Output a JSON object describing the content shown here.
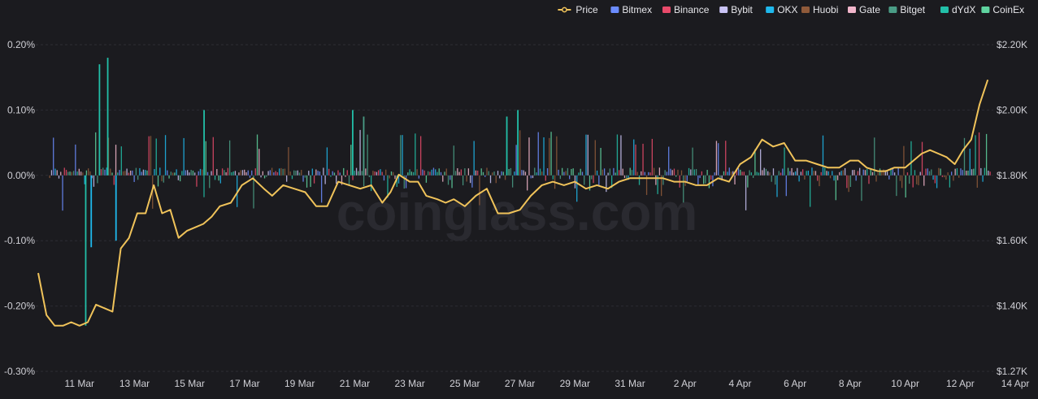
{
  "chart_data": {
    "type": "bar+line",
    "legend": {
      "placement": "top-right",
      "items": [
        {
          "name": "Price",
          "color": "#f0c35a",
          "kind": "line"
        },
        {
          "name": "Bitmex",
          "color": "#6b8cff",
          "kind": "bar"
        },
        {
          "name": "Binance",
          "color": "#e84a6a",
          "kind": "bar"
        },
        {
          "name": "Bybit",
          "color": "#c9c3f5",
          "kind": "bar"
        },
        {
          "name": "OKX",
          "color": "#1fb8ec",
          "kind": "bar"
        },
        {
          "name": "Huobi",
          "color": "#8f5a3a",
          "kind": "bar"
        },
        {
          "name": "Gate",
          "color": "#f2b6cb",
          "kind": "bar"
        },
        {
          "name": "Bitget",
          "color": "#4a9d86",
          "kind": "bar"
        },
        {
          "name": "dYdX",
          "color": "#22bfa8",
          "kind": "bar"
        },
        {
          "name": "CoinEx",
          "color": "#5fd3a0",
          "kind": "bar"
        }
      ]
    },
    "y_left": {
      "ticks": [
        "0.20%",
        "0.10%",
        "0.00%",
        "-0.10%",
        "-0.20%",
        "-0.30%"
      ],
      "range": [
        -0.3,
        0.2
      ],
      "unit": "%"
    },
    "y_right": {
      "ticks": [
        "$2.20K",
        "$2.00K",
        "$1.80K",
        "$1.60K",
        "$1.40K",
        "$1.27K"
      ],
      "range": [
        1.27,
        2.2
      ],
      "unit": "$K"
    },
    "x_ticks": [
      "11 Mar",
      "13 Mar",
      "15 Mar",
      "17 Mar",
      "19 Mar",
      "21 Mar",
      "23 Mar",
      "25 Mar",
      "27 Mar",
      "29 Mar",
      "31 Mar",
      "2 Apr",
      "4 Apr",
      "6 Apr",
      "8 Apr",
      "10 Apr",
      "12 Apr",
      "14 Apr"
    ],
    "x_range_days": [
      -1.5,
      33.2
    ],
    "grid": true,
    "watermark": "coinglass.com",
    "price_series": {
      "name": "Price",
      "day": [
        -1.5,
        -1.2,
        -0.9,
        -0.6,
        -0.3,
        0,
        0.3,
        0.6,
        0.9,
        1.2,
        1.5,
        1.8,
        2.1,
        2.4,
        2.7,
        3.0,
        3.3,
        3.6,
        3.9,
        4.2,
        4.5,
        4.8,
        5.1,
        5.5,
        5.9,
        6.3,
        6.7,
        7.0,
        7.4,
        7.8,
        8.2,
        8.6,
        9.0,
        9.4,
        9.8,
        10.2,
        10.6,
        11.0,
        11.3,
        11.6,
        12.0,
        12.3,
        12.6,
        13.0,
        13.3,
        13.6,
        14.0,
        14.4,
        14.8,
        15.2,
        15.6,
        16.0,
        16.4,
        16.8,
        17.2,
        17.6,
        18.0,
        18.4,
        18.8,
        19.2,
        19.6,
        20.0,
        20.4,
        20.8,
        21.2,
        21.6,
        22.0,
        22.4,
        22.8,
        23.2,
        23.6,
        24.0,
        24.4,
        24.8,
        25.2,
        25.6,
        26.0,
        26.4,
        26.8,
        27.2,
        27.6,
        28.0,
        28.3,
        28.6,
        29.0,
        29.3,
        29.6,
        30.0,
        30.3,
        30.6,
        30.9,
        31.2,
        31.5,
        31.8,
        32.1,
        32.4,
        32.7,
        33.0
      ],
      "price_k": [
        1.55,
        1.43,
        1.4,
        1.4,
        1.41,
        1.4,
        1.41,
        1.46,
        1.45,
        1.44,
        1.62,
        1.65,
        1.72,
        1.72,
        1.8,
        1.72,
        1.73,
        1.65,
        1.67,
        1.68,
        1.69,
        1.71,
        1.74,
        1.75,
        1.8,
        1.82,
        1.79,
        1.77,
        1.8,
        1.79,
        1.78,
        1.74,
        1.74,
        1.81,
        1.8,
        1.79,
        1.8,
        1.75,
        1.78,
        1.83,
        1.81,
        1.81,
        1.77,
        1.76,
        1.75,
        1.76,
        1.74,
        1.77,
        1.79,
        1.72,
        1.72,
        1.73,
        1.77,
        1.8,
        1.81,
        1.8,
        1.81,
        1.79,
        1.8,
        1.79,
        1.81,
        1.82,
        1.82,
        1.82,
        1.82,
        1.81,
        1.81,
        1.8,
        1.8,
        1.82,
        1.81,
        1.86,
        1.88,
        1.93,
        1.91,
        1.92,
        1.87,
        1.87,
        1.86,
        1.85,
        1.85,
        1.87,
        1.87,
        1.85,
        1.84,
        1.84,
        1.85,
        1.85,
        1.87,
        1.89,
        1.9,
        1.89,
        1.88,
        1.86,
        1.9,
        1.93,
        2.03,
        2.1
      ]
    },
    "funding_bars_notable": [
      {
        "day": 0.7,
        "exchange": "dYdX",
        "rate": 0.17
      },
      {
        "day": 1.0,
        "exchange": "dYdX",
        "rate": 0.18
      },
      {
        "day": 4.5,
        "exchange": "dYdX",
        "rate": 0.1
      },
      {
        "day": 9.9,
        "exchange": "dYdX",
        "rate": 0.1
      },
      {
        "day": 10.3,
        "exchange": "Bitget",
        "rate": 0.09
      },
      {
        "day": 15.5,
        "exchange": "dYdX",
        "rate": 0.09
      },
      {
        "day": 15.9,
        "exchange": "dYdX",
        "rate": 0.1
      },
      {
        "day": 0.2,
        "exchange": "dYdX",
        "rate": -0.23
      },
      {
        "day": 0.4,
        "exchange": "OKX",
        "rate": -0.11
      },
      {
        "day": 1.3,
        "exchange": "OKX",
        "rate": -0.1
      }
    ]
  }
}
